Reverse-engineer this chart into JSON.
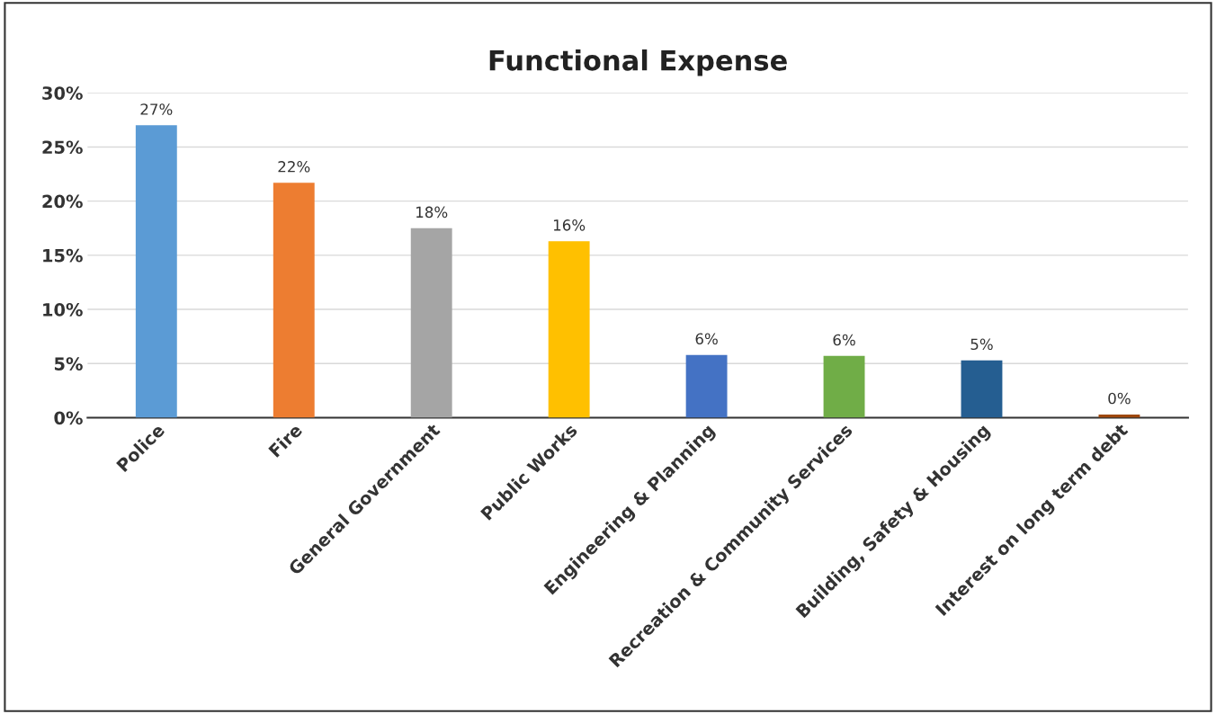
{
  "chart_data": {
    "type": "bar",
    "title": "Functional Expense",
    "categories": [
      "Police",
      "Fire",
      "General Government",
      "Public Works",
      "Engineering & Planning",
      "Recreation & Community Services",
      "Building, Safety & Housing",
      "Interest on long term debt"
    ],
    "values": [
      27.0,
      21.7,
      17.5,
      16.3,
      5.8,
      5.7,
      5.3,
      0.3
    ],
    "value_labels": [
      "27%",
      "22%",
      "18%",
      "16%",
      "6%",
      "6%",
      "5%",
      "0%"
    ],
    "colors": [
      "#5b9bd5",
      "#ed7d31",
      "#a5a5a5",
      "#ffc000",
      "#4472c4",
      "#70ad47",
      "#255e91",
      "#9e480e"
    ],
    "ylim": [
      0,
      30
    ],
    "yticks": [
      {
        "value": 0,
        "label": "0%"
      },
      {
        "value": 5,
        "label": "5%"
      },
      {
        "value": 10,
        "label": "10%"
      },
      {
        "value": 15,
        "label": "15%"
      },
      {
        "value": 20,
        "label": "20%"
      },
      {
        "value": 25,
        "label": "25%"
      },
      {
        "value": 30,
        "label": "30%"
      }
    ],
    "grid": "y"
  }
}
